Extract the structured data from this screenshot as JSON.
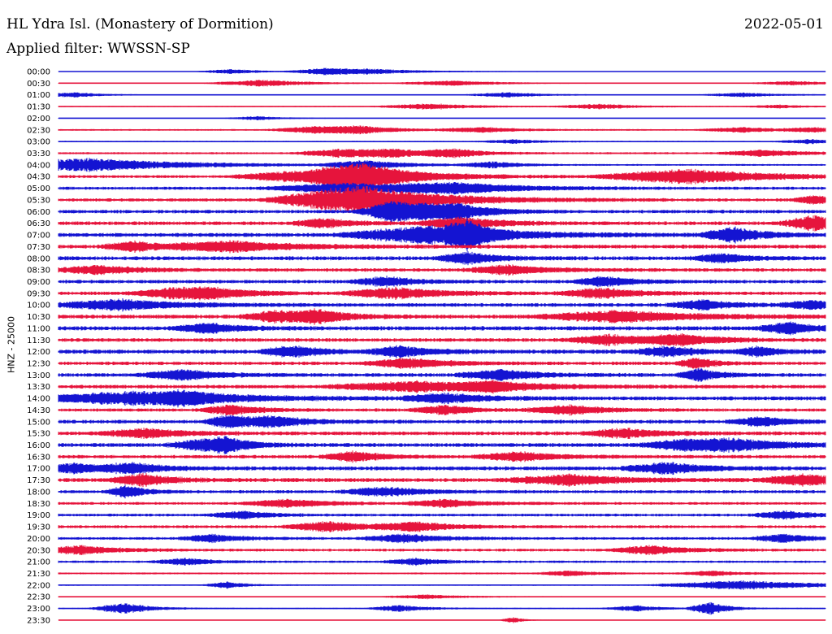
{
  "header": {
    "station": "HL Ydra Isl. (Monastery of Dormition)",
    "date": "2022-05-01",
    "filter": "Applied filter: WWSSN-SP"
  },
  "colors": {
    "blue": "#1414d2",
    "red": "#e6143c"
  },
  "chart_data": {
    "type": "line",
    "title": "HL Ydra Isl. (Monastery of Dormition)",
    "ylabel": "HNZ - 25000",
    "xlabel": "",
    "x_unit": "minutes within each 30-minute row",
    "xlim": [
      0,
      30
    ],
    "series_colors": [
      "blue",
      "red"
    ],
    "rows": [
      {
        "time": "00:00",
        "color": "blue",
        "noise": 0.3,
        "events": [
          [
            6.8,
            1.5,
            0.6
          ],
          [
            10.4,
            1.8,
            0.6
          ],
          [
            12.1,
            3.0,
            0.6
          ]
        ]
      },
      {
        "time": "00:30",
        "color": "red",
        "noise": 0.4,
        "events": [
          [
            8.0,
            2.5,
            0.8
          ],
          [
            15.5,
            2.5,
            0.6
          ],
          [
            28.8,
            2,
            0.5
          ]
        ]
      },
      {
        "time": "01:00",
        "color": "blue",
        "noise": 0.4,
        "events": [
          [
            0.6,
            1.5,
            0.6
          ],
          [
            17.6,
            2,
            0.6
          ],
          [
            26.8,
            2,
            0.5
          ]
        ]
      },
      {
        "time": "01:30",
        "color": "red",
        "noise": 0.5,
        "events": [
          [
            14.6,
            2.5,
            0.7
          ],
          [
            21.2,
            2,
            0.6
          ],
          [
            28.2,
            1.5,
            0.4
          ]
        ]
      },
      {
        "time": "02:00",
        "color": "blue",
        "noise": 0.3,
        "events": [
          [
            7.8,
            1.5,
            0.5
          ]
        ]
      },
      {
        "time": "02:30",
        "color": "red",
        "noise": 0.7,
        "events": [
          [
            10.0,
            2,
            0.8
          ],
          [
            11.8,
            2,
            0.8
          ],
          [
            16.6,
            2,
            0.6
          ],
          [
            26.8,
            2,
            0.6
          ],
          [
            29.6,
            1.5,
            0.5
          ]
        ]
      },
      {
        "time": "03:00",
        "color": "blue",
        "noise": 0.6,
        "events": [
          [
            17.8,
            1.5,
            0.5
          ],
          [
            29.4,
            1.5,
            0.5
          ]
        ]
      },
      {
        "time": "03:30",
        "color": "red",
        "noise": 0.9,
        "events": [
          [
            11.0,
            2,
            1.0
          ],
          [
            13.1,
            2,
            0.9
          ],
          [
            15.5,
            1.5,
            0.9
          ],
          [
            27.6,
            2,
            0.8
          ]
        ]
      },
      {
        "time": "04:00",
        "color": "blue",
        "noise": 0.8,
        "events": [
          [
            1.2,
            5,
            1.6
          ],
          [
            12.0,
            2,
            1.0
          ],
          [
            17.0,
            1.5,
            0.7
          ]
        ]
      },
      {
        "time": "04:30",
        "color": "red",
        "noise": 1.3,
        "events": [
          [
            10.5,
            4,
            1.8
          ],
          [
            12.0,
            2,
            2.5
          ],
          [
            24.6,
            4,
            1.8
          ]
        ]
      },
      {
        "time": "05:00",
        "color": "blue",
        "noise": 1.3,
        "events": [
          [
            11.5,
            4,
            1.2
          ],
          [
            15.5,
            3,
            1.2
          ]
        ]
      },
      {
        "time": "05:30",
        "color": "red",
        "noise": 1.4,
        "events": [
          [
            11.8,
            4,
            3.5
          ],
          [
            29.6,
            1,
            1.0
          ]
        ]
      },
      {
        "time": "06:00",
        "color": "blue",
        "noise": 1.5,
        "events": [
          [
            13.0,
            1.5,
            2.0
          ],
          [
            14.2,
            2,
            1.5
          ],
          [
            15.6,
            1.5,
            1.4
          ]
        ]
      },
      {
        "time": "06:30",
        "color": "red",
        "noise": 1.6,
        "events": [
          [
            10.4,
            1.5,
            1.1
          ],
          [
            15.8,
            2,
            1.4
          ],
          [
            29.6,
            1.5,
            1.8
          ]
        ]
      },
      {
        "time": "07:00",
        "color": "blue",
        "noise": 1.7,
        "events": [
          [
            14.6,
            4,
            2.2
          ],
          [
            16.0,
            1,
            2.6
          ],
          [
            26.4,
            1.5,
            1.8
          ]
        ]
      },
      {
        "time": "07:30",
        "color": "red",
        "noise": 1.7,
        "events": [
          [
            3.0,
            1.5,
            1.2
          ],
          [
            6.8,
            3,
            1.3
          ]
        ]
      },
      {
        "time": "08:00",
        "color": "blue",
        "noise": 1.7,
        "events": [
          [
            16.0,
            1.5,
            1.4
          ],
          [
            26.0,
            1.5,
            1.0
          ]
        ]
      },
      {
        "time": "08:30",
        "color": "red",
        "noise": 1.5,
        "events": [
          [
            1.6,
            2,
            1.1
          ],
          [
            17.6,
            2,
            1.1
          ]
        ]
      },
      {
        "time": "09:00",
        "color": "blue",
        "noise": 1.5,
        "events": [
          [
            12.8,
            1.5,
            1.2
          ],
          [
            21.4,
            1.5,
            1.2
          ]
        ]
      },
      {
        "time": "09:30",
        "color": "red",
        "noise": 1.5,
        "events": [
          [
            4.5,
            2,
            1.1
          ],
          [
            6.0,
            2,
            1.1
          ],
          [
            13.2,
            2.5,
            1.3
          ],
          [
            21.2,
            2,
            1.2
          ]
        ]
      },
      {
        "time": "10:00",
        "color": "blue",
        "noise": 1.6,
        "events": [
          [
            2.4,
            3,
            1.3
          ],
          [
            25.2,
            1.5,
            1.2
          ],
          [
            29.5,
            1.5,
            1.0
          ]
        ]
      },
      {
        "time": "10:30",
        "color": "red",
        "noise": 1.7,
        "events": [
          [
            8.5,
            1.5,
            1.4
          ],
          [
            10.2,
            1.5,
            1.5
          ],
          [
            22.0,
            4,
            1.3
          ]
        ]
      },
      {
        "time": "11:00",
        "color": "blue",
        "noise": 1.8,
        "events": [
          [
            5.8,
            1.5,
            1.2
          ],
          [
            28.6,
            1.5,
            1.3
          ]
        ]
      },
      {
        "time": "11:30",
        "color": "red",
        "noise": 1.6,
        "events": [
          [
            21.6,
            2,
            1.2
          ],
          [
            24.4,
            2,
            1.2
          ]
        ]
      },
      {
        "time": "12:00",
        "color": "blue",
        "noise": 1.8,
        "events": [
          [
            9.2,
            1.5,
            1.3
          ],
          [
            13.4,
            1.5,
            1.3
          ],
          [
            23.8,
            1.5,
            1.2
          ],
          [
            27.4,
            1,
            1.1
          ]
        ]
      },
      {
        "time": "12:30",
        "color": "red",
        "noise": 1.5,
        "events": [
          [
            13.7,
            2,
            1.2
          ],
          [
            25.0,
            1,
            1.2
          ]
        ]
      },
      {
        "time": "13:00",
        "color": "blue",
        "noise": 1.6,
        "events": [
          [
            4.9,
            2,
            1.2
          ],
          [
            17.3,
            2,
            1.2
          ],
          [
            25.1,
            1,
            1.5
          ]
        ]
      },
      {
        "time": "13:30",
        "color": "red",
        "noise": 1.6,
        "events": [
          [
            14.0,
            4,
            1.2
          ],
          [
            17.0,
            2,
            1.0
          ]
        ]
      },
      {
        "time": "14:00",
        "color": "blue",
        "noise": 1.7,
        "events": [
          [
            3.0,
            5,
            1.5
          ],
          [
            5.0,
            1.5,
            1.2
          ],
          [
            15.2,
            2,
            1.1
          ]
        ]
      },
      {
        "time": "14:30",
        "color": "red",
        "noise": 1.4,
        "events": [
          [
            6.8,
            1.5,
            1.2
          ],
          [
            15.1,
            1.5,
            1.1
          ],
          [
            20.0,
            2,
            1.1
          ]
        ]
      },
      {
        "time": "15:00",
        "color": "blue",
        "noise": 1.6,
        "events": [
          [
            6.6,
            1,
            1.5
          ],
          [
            8.4,
            2,
            1.2
          ],
          [
            27.5,
            1.5,
            1.1
          ]
        ]
      },
      {
        "time": "15:30",
        "color": "red",
        "noise": 1.6,
        "events": [
          [
            3.4,
            2,
            1.1
          ],
          [
            22.2,
            2,
            1.1
          ]
        ]
      },
      {
        "time": "16:00",
        "color": "blue",
        "noise": 1.7,
        "events": [
          [
            5.6,
            1.5,
            1.3
          ],
          [
            6.6,
            1,
            1.7
          ],
          [
            24.4,
            2,
            1.2
          ],
          [
            26.4,
            2.5,
            1.3
          ]
        ]
      },
      {
        "time": "16:30",
        "color": "red",
        "noise": 1.5,
        "events": [
          [
            11.6,
            1.5,
            1.2
          ],
          [
            18.0,
            2,
            1.1
          ]
        ]
      },
      {
        "time": "17:00",
        "color": "blue",
        "noise": 1.7,
        "events": [
          [
            0.6,
            1.5,
            1.2
          ],
          [
            2.9,
            1.5,
            1.2
          ],
          [
            23.8,
            2,
            1.3
          ]
        ]
      },
      {
        "time": "17:30",
        "color": "red",
        "noise": 1.7,
        "events": [
          [
            3.3,
            1.5,
            1.4
          ],
          [
            20.0,
            3,
            1.2
          ],
          [
            29.2,
            2,
            1.3
          ]
        ]
      },
      {
        "time": "18:00",
        "color": "blue",
        "noise": 1.4,
        "events": [
          [
            2.7,
            1,
            1.4
          ],
          [
            12.8,
            2,
            1.1
          ]
        ]
      },
      {
        "time": "18:30",
        "color": "red",
        "noise": 1.2,
        "events": [
          [
            9.0,
            2,
            1.0
          ],
          [
            15.2,
            2,
            0.9
          ]
        ]
      },
      {
        "time": "19:00",
        "color": "blue",
        "noise": 1.2,
        "events": [
          [
            7.2,
            1.5,
            0.9
          ],
          [
            28.4,
            1.5,
            1.0
          ]
        ]
      },
      {
        "time": "19:30",
        "color": "red",
        "noise": 1.3,
        "events": [
          [
            10.6,
            2,
            1.2
          ],
          [
            14.0,
            2,
            1.0
          ]
        ]
      },
      {
        "time": "20:00",
        "color": "blue",
        "noise": 1.2,
        "events": [
          [
            6.0,
            1.5,
            0.9
          ],
          [
            13.5,
            2,
            1.0
          ],
          [
            28.4,
            1.5,
            1.0
          ]
        ]
      },
      {
        "time": "20:30",
        "color": "red",
        "noise": 1.2,
        "events": [
          [
            0.9,
            2,
            1.0
          ],
          [
            23.2,
            2,
            1.0
          ]
        ]
      },
      {
        "time": "21:00",
        "color": "blue",
        "noise": 1.0,
        "events": [
          [
            5.0,
            1.5,
            0.8
          ],
          [
            14.0,
            1.5,
            0.8
          ]
        ]
      },
      {
        "time": "21:30",
        "color": "red",
        "noise": 0.8,
        "events": [
          [
            20.0,
            1.5,
            0.6
          ],
          [
            25.6,
            1.5,
            0.6
          ]
        ]
      },
      {
        "time": "22:00",
        "color": "blue",
        "noise": 0.6,
        "events": [
          [
            6.6,
            1,
            0.8
          ],
          [
            26.8,
            4,
            1.1
          ]
        ]
      },
      {
        "time": "22:30",
        "color": "red",
        "noise": 0.5,
        "events": [
          [
            14.4,
            2,
            0.5
          ]
        ]
      },
      {
        "time": "23:00",
        "color": "blue",
        "noise": 0.5,
        "events": [
          [
            2.6,
            1.5,
            1.3
          ],
          [
            13.4,
            1.5,
            0.8
          ],
          [
            22.6,
            1.5,
            0.7
          ],
          [
            25.5,
            1,
            1.5
          ]
        ]
      },
      {
        "time": "23:30",
        "color": "red",
        "noise": 0.3,
        "events": [
          [
            17.8,
            0.6,
            0.7
          ]
        ]
      }
    ]
  }
}
